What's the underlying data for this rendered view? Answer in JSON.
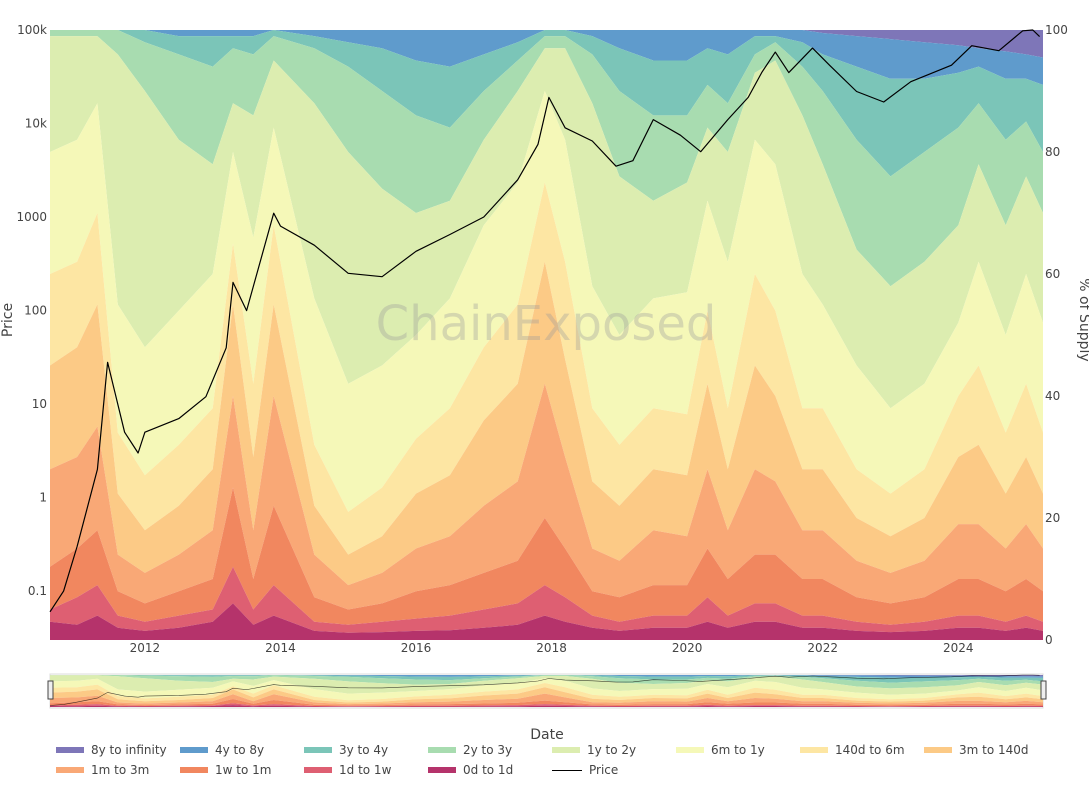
{
  "chart_data": {
    "type": "area",
    "title": "",
    "xlabel": "Date",
    "ylabel": "Price",
    "y2label": "% of Supply",
    "watermark": "ChainExposed",
    "x_ticks": [
      "2012",
      "2014",
      "2016",
      "2018",
      "2020",
      "2022",
      "2024"
    ],
    "y_ticks": [
      "0.1",
      "1",
      "10",
      "100",
      "1000",
      "10k",
      "100k"
    ],
    "y2_ticks": [
      "0",
      "20",
      "40",
      "60",
      "80",
      "100"
    ],
    "x_range": [
      2010.6,
      2025.25
    ],
    "y2lim": [
      0,
      100
    ],
    "ylim_log": [
      0.03,
      100000
    ],
    "x": [
      2010.6,
      2011.0,
      2011.3,
      2011.6,
      2012.0,
      2012.5,
      2013.0,
      2013.3,
      2013.6,
      2013.9,
      2014.5,
      2015.0,
      2015.5,
      2016.0,
      2016.5,
      2017.0,
      2017.5,
      2017.9,
      2018.2,
      2018.6,
      2019.0,
      2019.5,
      2020.0,
      2020.3,
      2020.6,
      2021.0,
      2021.3,
      2021.7,
      2022.0,
      2022.5,
      2023.0,
      2023.5,
      2024.0,
      2024.3,
      2024.7,
      2025.0,
      2025.25
    ],
    "series": [
      {
        "name": "0d to 1d",
        "color": "#b5336b",
        "values": [
          3,
          2.5,
          4,
          2,
          1.5,
          2,
          3,
          6,
          2.5,
          4,
          1.5,
          1.2,
          1.3,
          1.5,
          1.6,
          2,
          2.5,
          4,
          3,
          2,
          1.5,
          2,
          2,
          3,
          2,
          3,
          3,
          2,
          2,
          1.5,
          1.3,
          1.5,
          2,
          2,
          1.5,
          2,
          1.5
        ]
      },
      {
        "name": "1d to 1w",
        "color": "#de5f72",
        "values": [
          5,
          7,
          9,
          4,
          3,
          4,
          5,
          12,
          5,
          9,
          3,
          2.5,
          3,
          3.5,
          4,
          5,
          6,
          9,
          7,
          4,
          3,
          4,
          4,
          7,
          4,
          6,
          6,
          4,
          4,
          3,
          2.5,
          3,
          4,
          4,
          3,
          4,
          3
        ]
      },
      {
        "name": "1w to 1m",
        "color": "#f1875f",
        "values": [
          12,
          15,
          18,
          8,
          6,
          8,
          10,
          25,
          10,
          22,
          7,
          5,
          6,
          8,
          9,
          11,
          13,
          20,
          15,
          8,
          7,
          9,
          9,
          15,
          10,
          14,
          14,
          10,
          10,
          7,
          6,
          7,
          10,
          10,
          8,
          10,
          8
        ]
      },
      {
        "name": "1m to 3m",
        "color": "#f9a876",
        "values": [
          28,
          30,
          35,
          14,
          11,
          14,
          18,
          40,
          18,
          40,
          14,
          9,
          11,
          15,
          17,
          22,
          26,
          42,
          30,
          15,
          13,
          18,
          17,
          28,
          18,
          28,
          26,
          18,
          18,
          13,
          11,
          13,
          19,
          19,
          15,
          19,
          15
        ]
      },
      {
        "name": "3m to 140d",
        "color": "#fcca86",
        "values": [
          45,
          48,
          55,
          24,
          18,
          22,
          28,
          55,
          30,
          55,
          22,
          14,
          17,
          24,
          27,
          36,
          42,
          62,
          46,
          26,
          22,
          28,
          27,
          42,
          28,
          45,
          40,
          28,
          28,
          20,
          17,
          20,
          30,
          32,
          24,
          30,
          24
        ]
      },
      {
        "name": "140d to 6m",
        "color": "#fde6a3",
        "values": [
          60,
          62,
          70,
          34,
          27,
          32,
          38,
          65,
          42,
          68,
          32,
          21,
          25,
          33,
          38,
          48,
          55,
          75,
          62,
          38,
          32,
          38,
          37,
          54,
          38,
          60,
          54,
          38,
          38,
          28,
          24,
          28,
          40,
          45,
          34,
          42,
          34
        ]
      },
      {
        "name": "6m to 1y",
        "color": "#f5f8b8",
        "values": [
          80,
          82,
          88,
          55,
          48,
          54,
          60,
          80,
          66,
          84,
          56,
          42,
          45,
          50,
          56,
          68,
          75,
          90,
          82,
          58,
          50,
          56,
          57,
          72,
          62,
          82,
          78,
          60,
          55,
          45,
          38,
          42,
          52,
          62,
          50,
          60,
          52
        ]
      },
      {
        "name": "1y to 2y",
        "color": "#dcedb0",
        "values": [
          99,
          99,
          99,
          96,
          90,
          82,
          78,
          88,
          86,
          95,
          88,
          80,
          74,
          70,
          72,
          82,
          90,
          97,
          97,
          88,
          76,
          72,
          75,
          84,
          80,
          93,
          95,
          86,
          78,
          64,
          58,
          62,
          68,
          78,
          68,
          76,
          70
        ]
      },
      {
        "name": "2y to 3y",
        "color": "#a8dcb0",
        "values": [
          100,
          100,
          100,
          100,
          98,
          96,
          94,
          97,
          96,
          99,
          97,
          94,
          90,
          86,
          84,
          90,
          95,
          99,
          99,
          96,
          90,
          86,
          86,
          91,
          88,
          96,
          98,
          94,
          90,
          82,
          76,
          80,
          84,
          88,
          82,
          85,
          80
        ]
      },
      {
        "name": "3y to 4y",
        "color": "#7bc5b8",
        "values": [
          100,
          100,
          100,
          100,
          100,
          99,
          99,
          99,
          99,
          100,
          99,
          98,
          97,
          95,
          94,
          96,
          98,
          100,
          100,
          99,
          97,
          95,
          95,
          97,
          96,
          99,
          99,
          98,
          96,
          94,
          92,
          92,
          93,
          94,
          92,
          92,
          91
        ]
      },
      {
        "name": "4y to 8y",
        "color": "#5f9bcc",
        "values": [
          100,
          100,
          100,
          100,
          100,
          100,
          100,
          100,
          100,
          100,
          100,
          100,
          100,
          100,
          100,
          100,
          100,
          100,
          100,
          100,
          100,
          100,
          100,
          100,
          100,
          100,
          100,
          100,
          99.5,
          99,
          98.5,
          98,
          97.5,
          97,
          96.5,
          96,
          95.5
        ]
      },
      {
        "name": "8y to infinity",
        "color": "#7e76b8",
        "values": [
          100,
          100,
          100,
          100,
          100,
          100,
          100,
          100,
          100,
          100,
          100,
          100,
          100,
          100,
          100,
          100,
          100,
          100,
          100,
          100,
          100,
          100,
          100,
          100,
          100,
          100,
          100,
          100,
          100,
          100,
          100,
          100,
          100,
          100,
          100,
          100,
          100
        ]
      }
    ],
    "price": {
      "name": "Price",
      "color": "#000000",
      "x": [
        2010.6,
        2010.8,
        2011.0,
        2011.3,
        2011.45,
        2011.7,
        2011.9,
        2012.0,
        2012.5,
        2012.9,
        2013.2,
        2013.3,
        2013.5,
        2013.9,
        2014.0,
        2014.5,
        2015.0,
        2015.5,
        2016.0,
        2016.5,
        2017.0,
        2017.5,
        2017.8,
        2017.96,
        2018.2,
        2018.6,
        2018.95,
        2019.2,
        2019.5,
        2019.9,
        2020.2,
        2020.6,
        2020.9,
        2021.1,
        2021.3,
        2021.5,
        2021.85,
        2022.1,
        2022.5,
        2022.9,
        2023.3,
        2023.9,
        2024.2,
        2024.6,
        2024.95,
        2025.1,
        2025.2
      ],
      "values": [
        0.06,
        0.1,
        0.3,
        2,
        28,
        5,
        3,
        5,
        7,
        12,
        40,
        200,
        100,
        1100,
        800,
        500,
        250,
        230,
        430,
        650,
        1000,
        2500,
        6000,
        19000,
        9000,
        6500,
        3500,
        4000,
        11000,
        7500,
        5000,
        11000,
        19000,
        35000,
        58000,
        35000,
        64000,
        42000,
        22000,
        17000,
        28000,
        42000,
        68000,
        60000,
        98000,
        100000,
        85000
      ]
    }
  }
}
